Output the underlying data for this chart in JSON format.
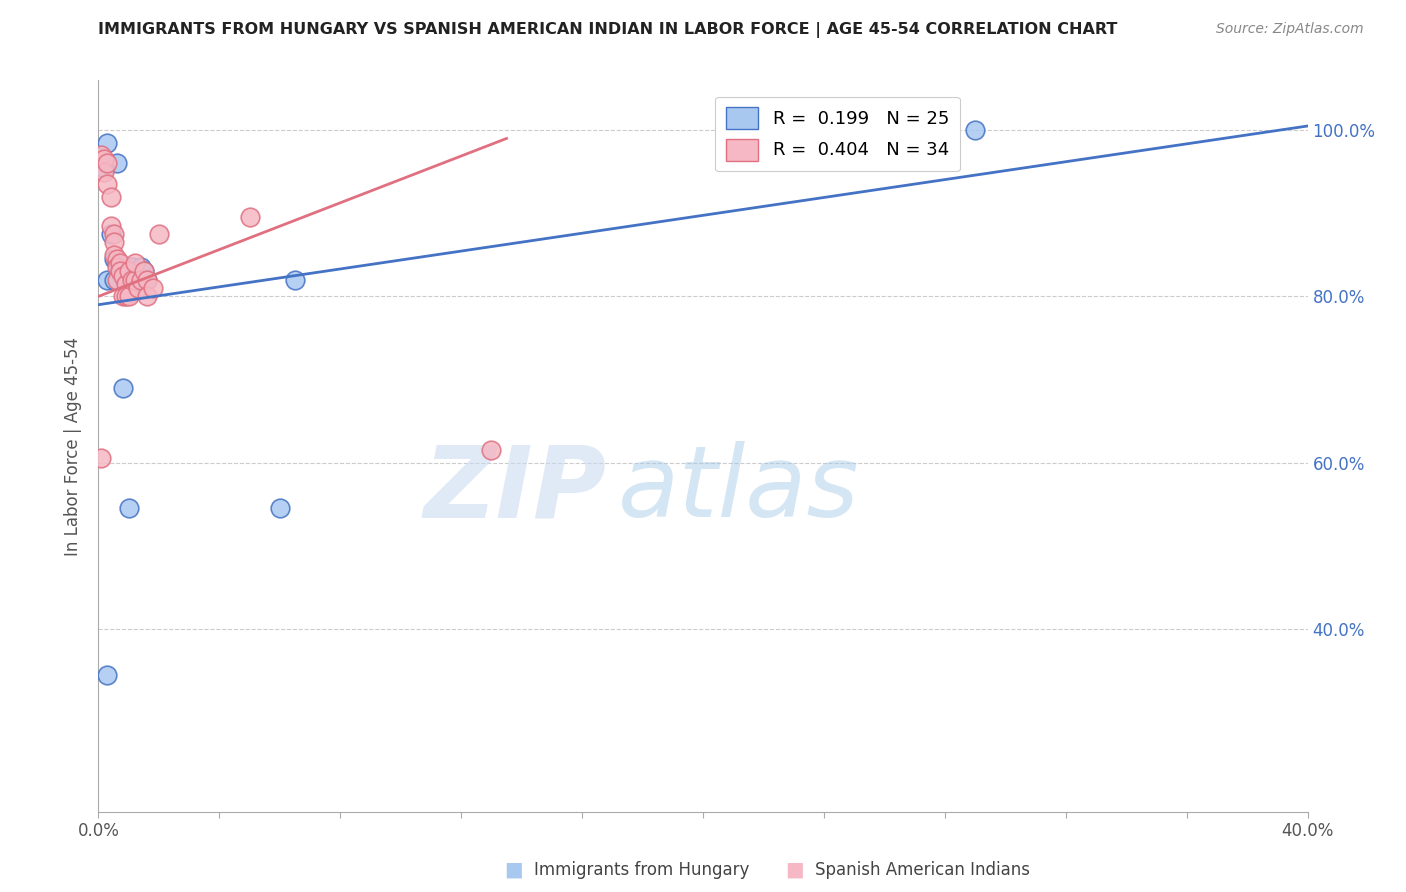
{
  "title": "IMMIGRANTS FROM HUNGARY VS SPANISH AMERICAN INDIAN IN LABOR FORCE | AGE 45-54 CORRELATION CHART",
  "source": "Source: ZipAtlas.com",
  "ylabel": "In Labor Force | Age 45-54",
  "xlim": [
    0.0,
    0.4
  ],
  "ylim": [
    0.18,
    1.06
  ],
  "xticklabels_sparse": [
    "0.0%",
    "",
    "",
    "",
    "",
    "",
    "",
    "",
    "",
    "40.0%"
  ],
  "yticks": [
    0.4,
    0.6,
    0.8,
    1.0
  ],
  "yticklabels": [
    "40.0%",
    "60.0%",
    "80.0%",
    "100.0%"
  ],
  "legend_blue_label": "R =  0.199   N = 25",
  "legend_pink_label": "R =  0.404   N = 34",
  "legend_bottom_blue": "Immigrants from Hungary",
  "legend_bottom_pink": "Spanish American Indians",
  "blue_color": "#a8c8f0",
  "pink_color": "#f5b8c4",
  "trendline_blue_color": "#4472c4",
  "trendline_pink_color": "#e07080",
  "watermark_zip": "ZIP",
  "watermark_atlas": "atlas",
  "background_color": "#ffffff",
  "blue_points_x": [
    0.003,
    0.006,
    0.002,
    0.004,
    0.005,
    0.006,
    0.007,
    0.008,
    0.009,
    0.01,
    0.011,
    0.012,
    0.013,
    0.014,
    0.015,
    0.008,
    0.01,
    0.06,
    0.065,
    0.29,
    0.003,
    0.003,
    0.005,
    0.012,
    0.016
  ],
  "blue_points_y": [
    0.985,
    0.96,
    0.955,
    0.875,
    0.845,
    0.84,
    0.835,
    0.83,
    0.83,
    0.83,
    0.835,
    0.825,
    0.82,
    0.835,
    0.83,
    0.69,
    0.545,
    0.545,
    0.82,
    1.0,
    0.345,
    0.82,
    0.82,
    0.82,
    0.82
  ],
  "pink_points_x": [
    0.001,
    0.002,
    0.002,
    0.003,
    0.003,
    0.004,
    0.004,
    0.005,
    0.005,
    0.005,
    0.006,
    0.006,
    0.006,
    0.007,
    0.007,
    0.008,
    0.008,
    0.009,
    0.009,
    0.01,
    0.01,
    0.011,
    0.012,
    0.012,
    0.013,
    0.014,
    0.015,
    0.016,
    0.016,
    0.018,
    0.02,
    0.05,
    0.001,
    0.13
  ],
  "pink_points_y": [
    0.97,
    0.965,
    0.95,
    0.96,
    0.935,
    0.92,
    0.885,
    0.875,
    0.865,
    0.85,
    0.845,
    0.835,
    0.82,
    0.84,
    0.83,
    0.825,
    0.8,
    0.815,
    0.8,
    0.8,
    0.83,
    0.82,
    0.82,
    0.84,
    0.81,
    0.82,
    0.83,
    0.82,
    0.8,
    0.81,
    0.875,
    0.895,
    0.605,
    0.615
  ],
  "blue_trend_x": [
    0.0,
    0.4
  ],
  "blue_trend_y": [
    0.79,
    1.005
  ],
  "pink_trend_x": [
    0.0,
    0.135
  ],
  "pink_trend_y": [
    0.8,
    0.99
  ]
}
